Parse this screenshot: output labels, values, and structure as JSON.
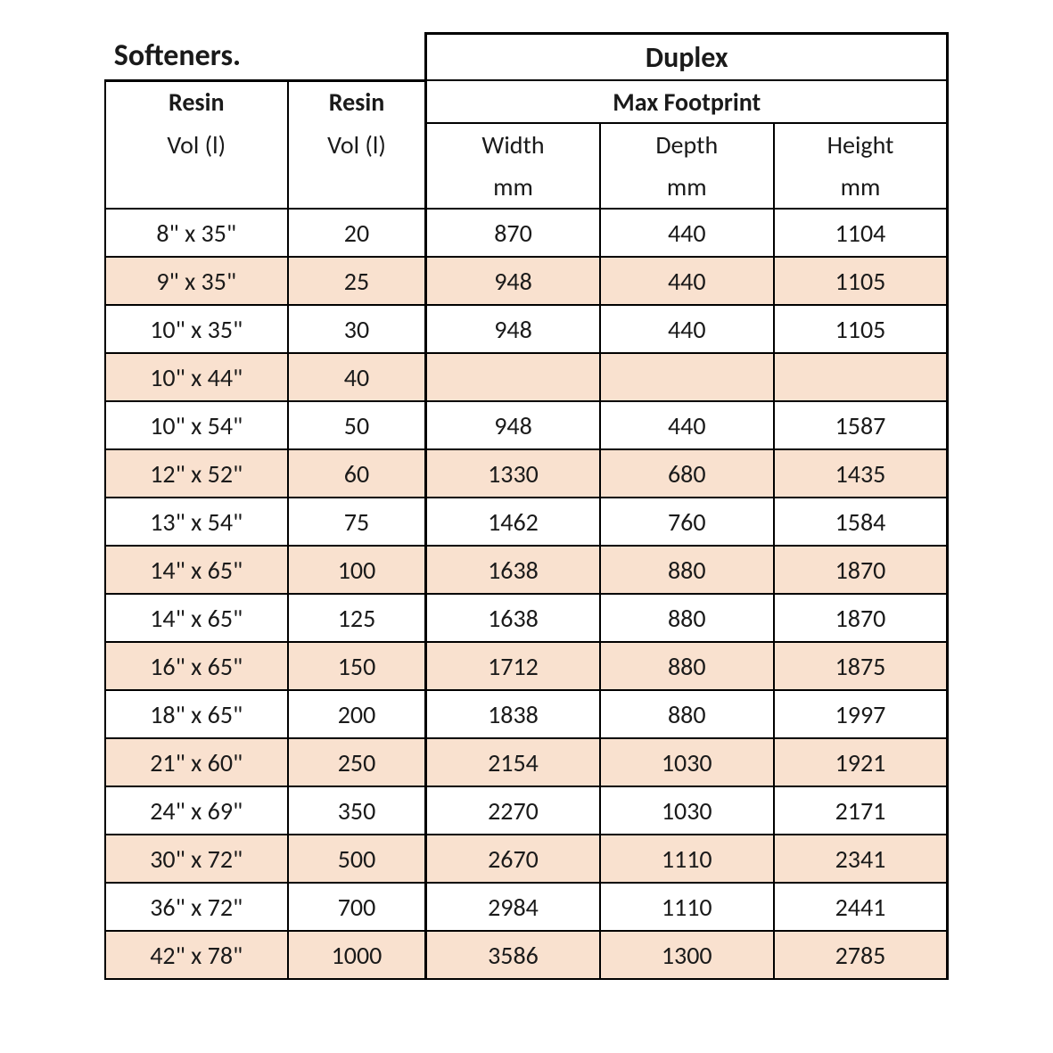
{
  "title_left": "Softeners.",
  "title_right": "Duplex",
  "subhead_left_label": "Resin",
  "subhead_left_sub": "Vol (l)",
  "subhead_right_label": "Resin",
  "subhead_right_sub": "Vol (l)",
  "max_footprint_label": "Max Footprint",
  "cols": {
    "width": "Width",
    "depth": "Depth",
    "height": "Height"
  },
  "unit": "mm",
  "colors": {
    "row_shade": "#f9e1cf",
    "background": "#ffffff",
    "border": "#000000",
    "text": "#1a1a1a"
  },
  "columns": [
    "Resin Vol (l)",
    "Resin Vol (l)",
    "Width mm",
    "Depth mm",
    "Height mm"
  ],
  "rows": [
    {
      "size": "8\" x 35\"",
      "vol": "20",
      "w": "870",
      "d": "440",
      "h": "1104"
    },
    {
      "size": "9\" x 35\"",
      "vol": "25",
      "w": "948",
      "d": "440",
      "h": "1105"
    },
    {
      "size": "10\" x 35\"",
      "vol": "30",
      "w": "948",
      "d": "440",
      "h": "1105"
    },
    {
      "size": "10\" x 44\"",
      "vol": "40",
      "w": "",
      "d": "",
      "h": ""
    },
    {
      "size": "10\" x 54\"",
      "vol": "50",
      "w": "948",
      "d": "440",
      "h": "1587"
    },
    {
      "size": "12\" x 52\"",
      "vol": "60",
      "w": "1330",
      "d": "680",
      "h": "1435"
    },
    {
      "size": "13\" x 54\"",
      "vol": "75",
      "w": "1462",
      "d": "760",
      "h": "1584"
    },
    {
      "size": "14\" x 65\"",
      "vol": "100",
      "w": "1638",
      "d": "880",
      "h": "1870"
    },
    {
      "size": "14\" x 65\"",
      "vol": "125",
      "w": "1638",
      "d": "880",
      "h": "1870"
    },
    {
      "size": "16\" x 65\"",
      "vol": "150",
      "w": "1712",
      "d": "880",
      "h": "1875"
    },
    {
      "size": "18\" x 65\"",
      "vol": "200",
      "w": "1838",
      "d": "880",
      "h": "1997"
    },
    {
      "size": "21\" x 60\"",
      "vol": "250",
      "w": "2154",
      "d": "1030",
      "h": "1921"
    },
    {
      "size": "24\" x 69\"",
      "vol": "350",
      "w": "2270",
      "d": "1030",
      "h": "2171"
    },
    {
      "size": "30\" x 72\"",
      "vol": "500",
      "w": "2670",
      "d": "1110",
      "h": "2341"
    },
    {
      "size": "36\" x 72\"",
      "vol": "700",
      "w": "2984",
      "d": "1110",
      "h": "2441"
    },
    {
      "size": "42\" x 78\"",
      "vol": "1000",
      "w": "3586",
      "d": "1300",
      "h": "2785"
    }
  ]
}
